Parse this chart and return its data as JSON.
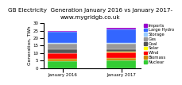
{
  "title": "GB Electricity  Generation January 2016 vs January 2017-",
  "subtitle": "www.mygridgb.co.uk",
  "categories": [
    "January 2016",
    "January 2017"
  ],
  "ylabel": "Generation, TWh",
  "ylim": [
    0,
    30
  ],
  "yticks": [
    0,
    5,
    10,
    15,
    20,
    25,
    30
  ],
  "segments": [
    {
      "label": "Nuclear",
      "values": [
        4.8,
        5.0
      ],
      "color": "#33cc33"
    },
    {
      "label": "Biomass",
      "values": [
        1.5,
        1.8
      ],
      "color": "#cc8800"
    },
    {
      "label": "Wind",
      "values": [
        3.5,
        3.8
      ],
      "color": "#ff0000"
    },
    {
      "label": "Solar",
      "values": [
        0.2,
        0.2
      ],
      "color": "#ffff00"
    },
    {
      "label": "Coal",
      "values": [
        2.8,
        2.0
      ],
      "color": "#555555"
    },
    {
      "label": "Gas",
      "values": [
        3.5,
        3.5
      ],
      "color": "#999999"
    },
    {
      "label": "Storage",
      "values": [
        0.3,
        0.3
      ],
      "color": "#99ccff"
    },
    {
      "label": "Large Hydro",
      "values": [
        7.5,
        9.0
      ],
      "color": "#3366ff"
    },
    {
      "label": "Imports",
      "values": [
        0.9,
        1.2
      ],
      "color": "#9900cc"
    }
  ],
  "bar_width": 0.5,
  "background_color": "#ffffff",
  "title_fontsize": 5.2,
  "label_fontsize": 4.2,
  "tick_fontsize": 4.0,
  "legend_fontsize": 3.8
}
